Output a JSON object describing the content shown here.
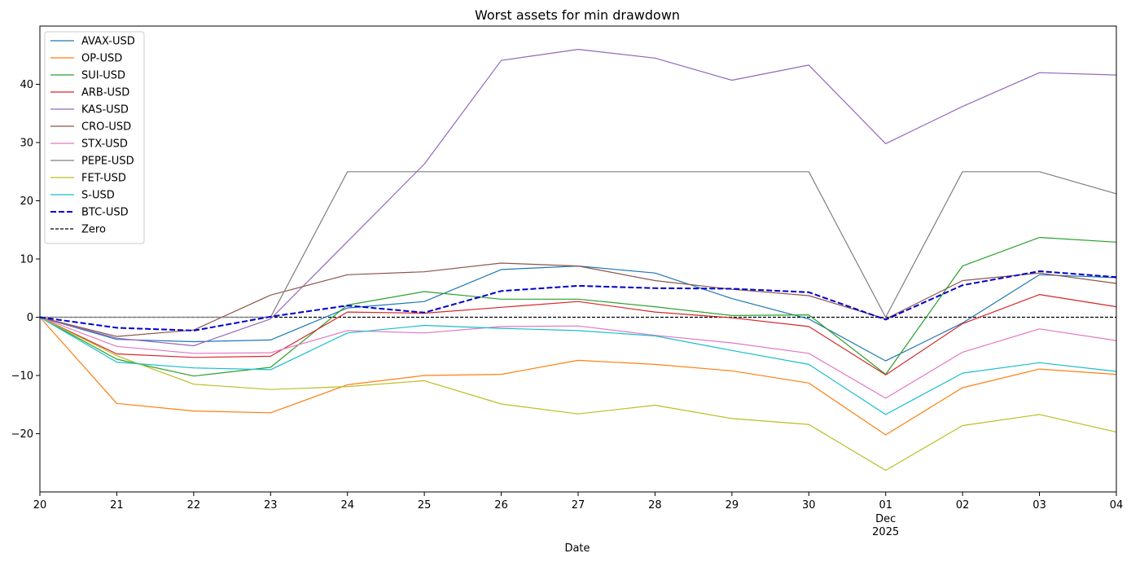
{
  "chart_data": {
    "type": "line",
    "title": "Worst assets for min drawdown",
    "xlabel": "Date",
    "ylabel": "",
    "x": [
      "20",
      "21",
      "22",
      "23",
      "24",
      "25",
      "26",
      "27",
      "28",
      "29",
      "30",
      "01",
      "02",
      "03",
      "04"
    ],
    "x_month_label": {
      "index": 11,
      "month": "Dec",
      "year": "2025"
    },
    "ylim": [
      -30,
      50
    ],
    "yticks": [
      -20,
      -10,
      0,
      10,
      20,
      30,
      40
    ],
    "grid": false,
    "legend_position": "upper-left",
    "series": [
      {
        "name": "AVAX-USD",
        "color": "#1f77b4",
        "style": "solid",
        "values": [
          0,
          -3.8,
          -4.2,
          -3.9,
          1.6,
          2.7,
          8.2,
          8.8,
          7.6,
          3.2,
          -0.3,
          -7.5,
          -1.0,
          7.3,
          6.8
        ]
      },
      {
        "name": "OP-USD",
        "color": "#ff7f0e",
        "style": "solid",
        "values": [
          0,
          -14.8,
          -16.1,
          -16.4,
          -11.6,
          -10.0,
          -9.8,
          -7.4,
          -8.1,
          -9.2,
          -11.3,
          -20.2,
          -12.1,
          -8.9,
          -9.8
        ]
      },
      {
        "name": "SUI-USD",
        "color": "#2ca02c",
        "style": "solid",
        "values": [
          0,
          -7.2,
          -10.1,
          -8.6,
          2.1,
          4.4,
          3.1,
          3.1,
          1.8,
          0.3,
          0.4,
          -9.8,
          8.8,
          13.7,
          12.9
        ]
      },
      {
        "name": "ARB-USD",
        "color": "#d62728",
        "style": "solid",
        "values": [
          0,
          -6.3,
          -6.9,
          -6.7,
          0.9,
          0.7,
          1.7,
          2.7,
          0.9,
          -0.1,
          -1.6,
          -9.9,
          -1.1,
          3.9,
          1.8
        ]
      },
      {
        "name": "KAS-USD",
        "color": "#9467bd",
        "style": "solid",
        "values": [
          0,
          -3.6,
          -4.9,
          -0.3,
          13.0,
          26.3,
          44.1,
          46.0,
          44.5,
          40.7,
          43.3,
          29.8,
          36.2,
          42.0,
          41.6
        ]
      },
      {
        "name": "CRO-USD",
        "color": "#8c564b",
        "style": "solid",
        "values": [
          0,
          -3.3,
          -2.2,
          3.8,
          7.3,
          7.8,
          9.3,
          8.8,
          6.3,
          4.8,
          3.7,
          -0.3,
          6.3,
          7.6,
          5.8
        ]
      },
      {
        "name": "STX-USD",
        "color": "#e377c2",
        "style": "solid",
        "values": [
          0,
          -5.0,
          -6.2,
          -6.1,
          -2.3,
          -2.7,
          -1.6,
          -1.5,
          -3.1,
          -4.4,
          -6.2,
          -13.9,
          -6.0,
          -2.0,
          -4.0
        ]
      },
      {
        "name": "PEPE-USD",
        "color": "#7f7f7f",
        "style": "solid",
        "values": [
          0,
          0,
          0,
          0,
          25,
          25,
          25,
          25,
          25,
          25,
          25,
          0,
          25,
          25,
          21.2
        ]
      },
      {
        "name": "FET-USD",
        "color": "#bcbd22",
        "style": "solid",
        "values": [
          0,
          -6.6,
          -11.5,
          -12.4,
          -11.9,
          -10.9,
          -14.9,
          -16.6,
          -15.1,
          -17.4,
          -18.4,
          -26.3,
          -18.6,
          -16.7,
          -19.7
        ]
      },
      {
        "name": "S-USD",
        "color": "#17becf",
        "style": "solid",
        "values": [
          0,
          -7.7,
          -8.7,
          -9.0,
          -2.7,
          -1.4,
          -1.9,
          -2.3,
          -3.2,
          -5.7,
          -8.1,
          -16.7,
          -9.6,
          -7.8,
          -9.3
        ]
      },
      {
        "name": "BTC-USD",
        "color": "#0000cd",
        "style": "dashed-bold",
        "values": [
          0,
          -1.8,
          -2.3,
          0.1,
          2.0,
          0.8,
          4.5,
          5.4,
          5.0,
          4.9,
          4.3,
          -0.4,
          5.5,
          7.9,
          6.9
        ]
      },
      {
        "name": "Zero",
        "color": "#000000",
        "style": "dashed-thin",
        "values": [
          0,
          0,
          0,
          0,
          0,
          0,
          0,
          0,
          0,
          0,
          0,
          0,
          0,
          0,
          0
        ]
      }
    ]
  }
}
